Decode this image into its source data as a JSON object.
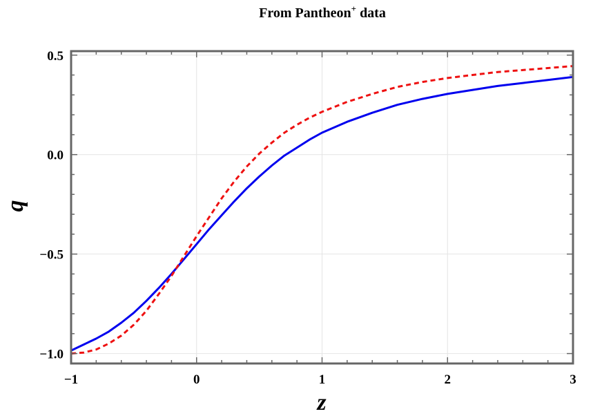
{
  "chart_data": {
    "type": "line",
    "title": "From Pantheon",
    "title_superscript": "+",
    "title_suffix": "data",
    "xlabel": "z",
    "ylabel": "q",
    "xlim": [
      -1,
      3
    ],
    "ylim": [
      -1.05,
      0.52
    ],
    "x_ticks": [
      {
        "value": -1,
        "label": "−1"
      },
      {
        "value": 0,
        "label": "0"
      },
      {
        "value": 1,
        "label": "1"
      },
      {
        "value": 2,
        "label": "2"
      },
      {
        "value": 3,
        "label": "3"
      }
    ],
    "y_ticks": [
      {
        "value": 0.5,
        "label": "0.5"
      },
      {
        "value": 0.0,
        "label": "0.0"
      },
      {
        "value": -0.5,
        "label": "−0.5"
      },
      {
        "value": -1.0,
        "label": "−1.0"
      }
    ],
    "grid": true,
    "legend": "none",
    "series": [
      {
        "color": "#0000ee",
        "style": "solid",
        "x": [
          -1.0,
          -0.9,
          -0.8,
          -0.7,
          -0.6,
          -0.5,
          -0.4,
          -0.3,
          -0.2,
          -0.1,
          0.0,
          0.1,
          0.2,
          0.3,
          0.4,
          0.5,
          0.6,
          0.7,
          0.8,
          0.9,
          1.0,
          1.2,
          1.4,
          1.6,
          1.8,
          2.0,
          2.2,
          2.4,
          2.6,
          2.8,
          3.0
        ],
        "y": [
          -0.985,
          -0.955,
          -0.925,
          -0.89,
          -0.845,
          -0.795,
          -0.735,
          -0.67,
          -0.6,
          -0.525,
          -0.45,
          -0.375,
          -0.305,
          -0.235,
          -0.17,
          -0.11,
          -0.055,
          -0.005,
          0.035,
          0.075,
          0.11,
          0.165,
          0.21,
          0.25,
          0.28,
          0.305,
          0.325,
          0.345,
          0.36,
          0.375,
          0.39
        ]
      },
      {
        "color": "#ee1111",
        "style": "dashed",
        "x": [
          -1.0,
          -0.9,
          -0.8,
          -0.7,
          -0.6,
          -0.5,
          -0.4,
          -0.3,
          -0.2,
          -0.1,
          0.0,
          0.1,
          0.2,
          0.3,
          0.4,
          0.5,
          0.6,
          0.7,
          0.8,
          0.9,
          1.0,
          1.2,
          1.4,
          1.6,
          1.8,
          2.0,
          2.2,
          2.4,
          2.6,
          2.8,
          3.0
        ],
        "y": [
          -1.0,
          -0.995,
          -0.98,
          -0.95,
          -0.91,
          -0.855,
          -0.785,
          -0.7,
          -0.61,
          -0.51,
          -0.41,
          -0.315,
          -0.22,
          -0.135,
          -0.06,
          0.005,
          0.06,
          0.11,
          0.15,
          0.185,
          0.215,
          0.265,
          0.305,
          0.34,
          0.365,
          0.385,
          0.4,
          0.415,
          0.425,
          0.435,
          0.445
        ]
      }
    ]
  }
}
